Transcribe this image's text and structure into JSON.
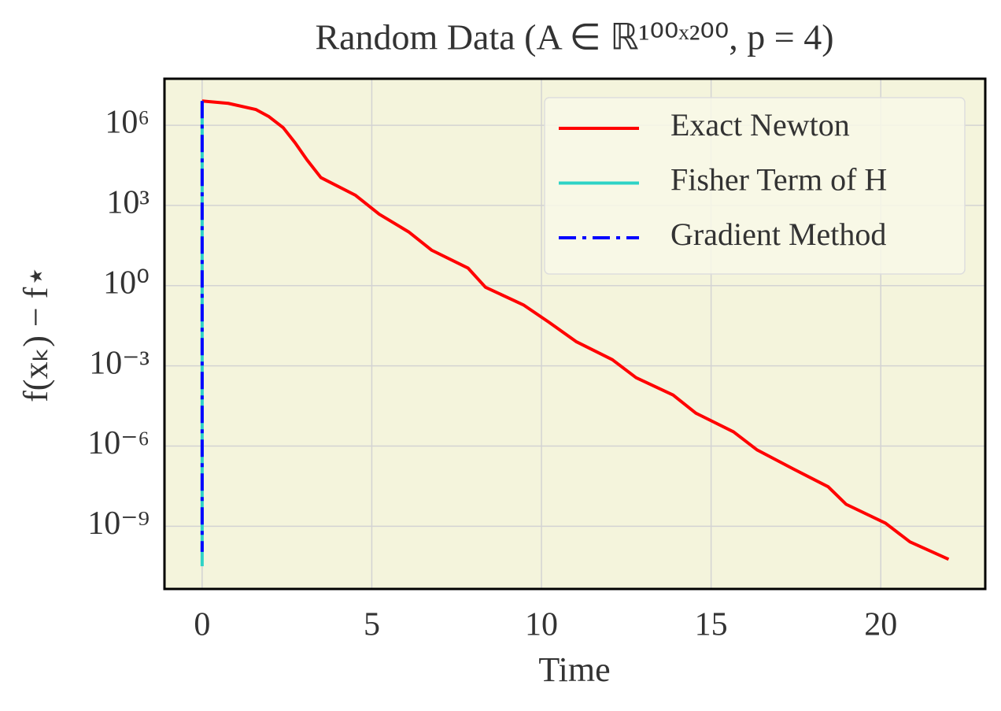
{
  "chart_data": {
    "type": "line",
    "title": "Random Data (A ∈ ℝ¹⁰⁰ˣ²⁰⁰, p = 4)",
    "xlabel": "Time",
    "ylabel": "f(xₖ) − f⋆",
    "yscale": "log",
    "grid": true,
    "legend": "upper right",
    "xlim": [
      -1.11,
      23.08
    ],
    "ylim": [
      55000000.0,
      4.5e-12
    ],
    "xticks": [
      0,
      5,
      10,
      15,
      20
    ],
    "yticks": [
      {
        "value": 1000000,
        "label": "10⁶"
      },
      {
        "value": 1000,
        "label": "10³"
      },
      {
        "value": 1,
        "label": "10⁰"
      },
      {
        "value": 0.001,
        "label": "10⁻³"
      },
      {
        "value": 1e-06,
        "label": "10⁻⁶"
      },
      {
        "value": 1e-09,
        "label": "10⁻⁹"
      }
    ],
    "series": [
      {
        "name": "Exact Newton",
        "color": "#ff0000",
        "style": "solid",
        "x": [
          0,
          0.77,
          1.58,
          1.97,
          2.39,
          2.74,
          3.09,
          3.5,
          4.52,
          5.22,
          6.1,
          6.77,
          7.84,
          8.35,
          9.47,
          10.23,
          11.02,
          12.09,
          12.79,
          13.88,
          14.55,
          15.66,
          16.36,
          17.42,
          18.45,
          18.98,
          20.14,
          20.86,
          22.0
        ],
        "values": [
          8100000.0,
          6600000.0,
          3900000.0,
          2100000.0,
          810000.0,
          220000.0,
          51000.0,
          11000.0,
          2400,
          470,
          100,
          21,
          4.5,
          0.87,
          0.19,
          0.042,
          0.0081,
          0.0017,
          0.00036,
          8.1e-05,
          1.7e-05,
          3.4e-06,
          7.1e-07,
          1.4e-07,
          3e-08,
          6.6e-09,
          1.3e-09,
          2.6e-10,
          5.8e-11
        ]
      },
      {
        "name": "Fisher Term of H",
        "color": "#2ed3c6",
        "style": "solid",
        "x": [
          0,
          0
        ],
        "values": [
          8100000.0,
          3.2e-11
        ]
      },
      {
        "name": "Gradient Method",
        "color": "#0000ff",
        "style": "dashdot",
        "x": [
          0,
          0
        ],
        "values": [
          8100000.0,
          1.1e-10
        ]
      }
    ]
  }
}
